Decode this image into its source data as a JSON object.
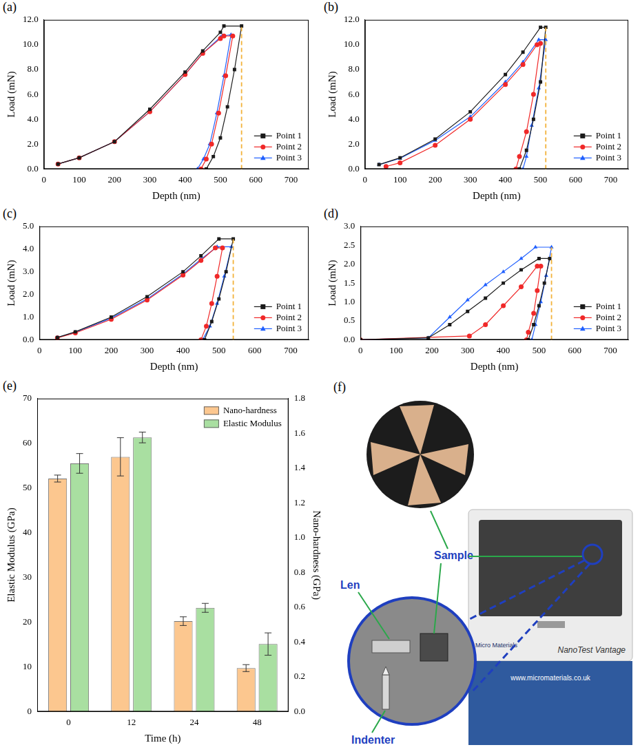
{
  "chart_data": [
    {
      "type": "line",
      "panel_label": "(a)",
      "x_label": "Depth (nm)",
      "y_label": "Load (mN)",
      "xlim": [
        0,
        750
      ],
      "xticks": [
        0,
        100,
        200,
        300,
        400,
        500,
        600,
        700
      ],
      "ylim": [
        0,
        12
      ],
      "yticks": [
        {
          "value": 0,
          "label": "0.0"
        },
        {
          "value": 2,
          "label": "2.0"
        },
        {
          "value": 4,
          "label": "4.0"
        },
        {
          "value": 6,
          "label": "6.0"
        },
        {
          "value": 8,
          "label": "8.0"
        },
        {
          "value": 10,
          "label": "10.0"
        },
        {
          "value": 12,
          "label": "12.0"
        }
      ],
      "grid": false,
      "legend": "bottom-right",
      "series": [
        {
          "name": "Point 1",
          "color": "#1a1a1a",
          "marker": "square",
          "x": [
            40,
            100,
            200,
            300,
            400,
            450,
            500,
            510,
            560,
            540,
            520,
            500,
            480,
            460
          ],
          "values": [
            0.4,
            0.9,
            2.2,
            4.8,
            7.8,
            9.5,
            11.0,
            11.5,
            11.5,
            8.0,
            5.0,
            2.5,
            1.0,
            0.0
          ]
        },
        {
          "name": "Point 2",
          "color": "#f02828",
          "marker": "circle",
          "x": [
            40,
            100,
            200,
            300,
            400,
            450,
            500,
            510,
            535,
            515,
            495,
            475,
            460,
            445
          ],
          "values": [
            0.4,
            0.9,
            2.2,
            4.6,
            7.6,
            9.3,
            10.5,
            10.7,
            10.7,
            7.5,
            4.5,
            2.0,
            0.8,
            0.0
          ]
        },
        {
          "name": "Point 3",
          "color": "#1f5fff",
          "marker": "triangle",
          "x": [
            40,
            100,
            200,
            300,
            400,
            450,
            500,
            505,
            530,
            510,
            490,
            470,
            452,
            435
          ],
          "values": [
            0.4,
            0.9,
            2.2,
            4.6,
            7.6,
            9.3,
            10.6,
            10.7,
            10.8,
            7.5,
            4.5,
            2.0,
            0.8,
            0.0
          ]
        }
      ],
      "vlines": [
        {
          "x": 560,
          "ymax": 11.6,
          "color": "#f2b23a",
          "line_style": "dashed"
        }
      ]
    },
    {
      "type": "line",
      "panel_label": "(b)",
      "x_label": "Depth (nm)",
      "y_label": "Load (mN)",
      "xlim": [
        0,
        750
      ],
      "xticks": [
        0,
        100,
        200,
        300,
        400,
        500,
        600,
        700
      ],
      "ylim": [
        0,
        12
      ],
      "yticks": [
        {
          "value": 0,
          "label": "0.0"
        },
        {
          "value": 2,
          "label": "2.0"
        },
        {
          "value": 4,
          "label": "4.0"
        },
        {
          "value": 6,
          "label": "6.0"
        },
        {
          "value": 8,
          "label": "8.0"
        },
        {
          "value": 10,
          "label": "10.0"
        },
        {
          "value": 12,
          "label": "12.0"
        }
      ],
      "grid": false,
      "legend": "bottom-right",
      "series": [
        {
          "name": "Point 1",
          "color": "#1a1a1a",
          "marker": "square",
          "x": [
            40,
            100,
            200,
            300,
            400,
            450,
            500,
            515,
            500,
            480,
            460,
            440
          ],
          "values": [
            0.35,
            0.9,
            2.4,
            4.6,
            7.6,
            9.4,
            11.4,
            11.4,
            7.0,
            4.0,
            1.5,
            0.0
          ]
        },
        {
          "name": "Point 2",
          "color": "#f02828",
          "marker": "circle",
          "x": [
            60,
            100,
            200,
            300,
            400,
            450,
            490,
            500,
            480,
            460,
            440,
            430
          ],
          "values": [
            0.2,
            0.5,
            1.9,
            4.0,
            6.8,
            8.4,
            10.0,
            10.1,
            6.0,
            3.0,
            1.0,
            0.0
          ]
        },
        {
          "name": "Point 3",
          "color": "#1f5fff",
          "marker": "triangle",
          "x": [
            40,
            100,
            200,
            300,
            400,
            450,
            495,
            515,
            495,
            475,
            460,
            450
          ],
          "values": [
            0.35,
            0.85,
            2.3,
            4.2,
            7.0,
            8.6,
            10.4,
            10.4,
            6.5,
            3.5,
            1.0,
            0.0
          ]
        }
      ],
      "vlines": [
        {
          "x": 515,
          "ymax": 11.4,
          "color": "#f2b23a",
          "line_style": "dashed"
        }
      ]
    },
    {
      "type": "line",
      "panel_label": "(c)",
      "x_label": "Depth (nm)",
      "y_label": "Load (mN)",
      "xlim": [
        0,
        750
      ],
      "xticks": [
        0,
        100,
        200,
        300,
        400,
        500,
        600,
        700
      ],
      "ylim": [
        0,
        5
      ],
      "yticks": [
        {
          "value": 0,
          "label": "0.0"
        },
        {
          "value": 1,
          "label": "1.0"
        },
        {
          "value": 2,
          "label": "2.0"
        },
        {
          "value": 3,
          "label": "3.0"
        },
        {
          "value": 4,
          "label": "4.0"
        },
        {
          "value": 5,
          "label": "5.0"
        }
      ],
      "grid": false,
      "legend": "bottom-right",
      "series": [
        {
          "name": "Point 1",
          "color": "#1a1a1a",
          "marker": "square",
          "x": [
            50,
            100,
            200,
            300,
            400,
            450,
            500,
            540,
            520,
            500,
            480,
            460
          ],
          "values": [
            0.1,
            0.35,
            1.0,
            1.9,
            3.0,
            3.7,
            4.45,
            4.45,
            3.0,
            1.8,
            0.8,
            0.0
          ]
        },
        {
          "name": "Point 2",
          "color": "#f02828",
          "marker": "circle",
          "x": [
            50,
            100,
            200,
            300,
            400,
            450,
            490,
            510,
            495,
            480,
            465,
            450
          ],
          "values": [
            0.08,
            0.3,
            0.9,
            1.75,
            2.85,
            3.5,
            4.05,
            4.05,
            2.8,
            1.6,
            0.6,
            0.0
          ]
        },
        {
          "name": "Point 3",
          "color": "#1f5fff",
          "marker": "triangle",
          "x": [
            50,
            100,
            200,
            300,
            400,
            450,
            495,
            535,
            515,
            495,
            475,
            455
          ],
          "values": [
            0.1,
            0.33,
            0.95,
            1.8,
            2.9,
            3.55,
            4.1,
            4.1,
            2.8,
            1.6,
            0.6,
            0.0
          ]
        }
      ],
      "vlines": [
        {
          "x": 540,
          "ymax": 4.45,
          "color": "#f2b23a",
          "line_style": "dashed"
        }
      ]
    },
    {
      "type": "line",
      "panel_label": "(d)",
      "x_label": "Depth (nm)",
      "y_label": "Load (mN)",
      "xlim": [
        0,
        750
      ],
      "xticks": [
        0,
        100,
        200,
        300,
        400,
        500,
        600,
        700
      ],
      "ylim": [
        0,
        3
      ],
      "yticks": [
        {
          "value": 0,
          "label": "0.0"
        },
        0.5,
        {
          "value": 1,
          "label": "1.0"
        },
        1.5,
        {
          "value": 2,
          "label": "2.0"
        },
        2.5,
        {
          "value": 3,
          "label": "3.0"
        }
      ],
      "grid": false,
      "legend": "bottom-right",
      "series": [
        {
          "name": "Point 1",
          "color": "#1a1a1a",
          "marker": "square",
          "x": [
            0,
            190,
            250,
            300,
            350,
            400,
            450,
            500,
            530,
            515,
            500,
            485,
            470
          ],
          "values": [
            0.0,
            0.05,
            0.4,
            0.75,
            1.1,
            1.5,
            1.85,
            2.15,
            2.15,
            1.5,
            0.9,
            0.4,
            0.0
          ]
        },
        {
          "name": "Point 2",
          "color": "#f02828",
          "marker": "circle",
          "x": [
            0,
            305,
            350,
            400,
            450,
            495,
            505,
            495,
            485,
            470,
            465
          ],
          "values": [
            0.0,
            0.1,
            0.4,
            0.9,
            1.4,
            1.95,
            1.95,
            1.3,
            0.7,
            0.2,
            0.0
          ]
        },
        {
          "name": "Point 3",
          "color": "#1f5fff",
          "marker": "triangle",
          "x": [
            0,
            190,
            250,
            300,
            350,
            400,
            450,
            490,
            535,
            520,
            505,
            490,
            480
          ],
          "values": [
            0.0,
            0.05,
            0.6,
            1.05,
            1.45,
            1.8,
            2.15,
            2.45,
            2.45,
            1.7,
            1.0,
            0.4,
            0.0
          ]
        }
      ],
      "vlines": [
        {
          "x": 535,
          "ymax": 2.45,
          "color": "#f2b23a",
          "line_style": "dashed"
        }
      ]
    },
    {
      "type": "bar",
      "panel_label": "(e)",
      "x_label": "Time (h)",
      "y_label": "Elastic Modulus (GPa)",
      "y2_label": "Nano-hardness (GPa)",
      "categories": [
        "0",
        "12",
        "24",
        "48"
      ],
      "ylim": [
        0,
        70
      ],
      "yticks": [
        0,
        10,
        20,
        30,
        40,
        50,
        60,
        70
      ],
      "y2lim": [
        0,
        1.8
      ],
      "y2ticks": [
        {
          "value": 0,
          "label": "0.0"
        },
        0.2,
        0.4,
        0.6,
        0.8,
        {
          "value": 1,
          "label": "1.0"
        },
        1.2,
        1.4,
        1.6,
        1.8
      ],
      "grid": false,
      "legend": "top-right",
      "series": [
        {
          "name": "Nano-hardness",
          "color": "#fcc78f",
          "axis": "y2",
          "values": [
            1.34,
            1.465,
            0.52,
            0.25
          ],
          "errors": [
            0.02,
            0.11,
            0.025,
            0.02
          ]
        },
        {
          "name": "Elastic Modulus",
          "color": "#a9dfa1",
          "values": [
            55.5,
            61.3,
            23.2,
            15.1
          ],
          "errors": [
            2.2,
            1.2,
            1.0,
            2.5
          ]
        }
      ]
    }
  ],
  "panel_f": {
    "panel_label": "(f)",
    "labels": {
      "sample": "Sample",
      "lens": "Len",
      "indenter": "Indenter"
    },
    "instrument": {
      "brand": "Micro Materials",
      "model": "NanoTest Vantage",
      "url": "www.micromaterials.co.uk"
    }
  }
}
